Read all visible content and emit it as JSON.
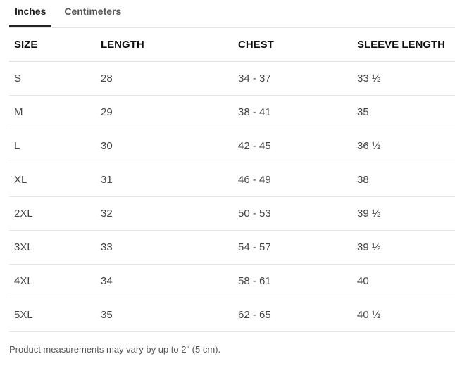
{
  "tabs": [
    {
      "label": "Inches",
      "active": true
    },
    {
      "label": "Centimeters",
      "active": false
    }
  ],
  "table": {
    "headers": [
      "SIZE",
      "LENGTH",
      "CHEST",
      "SLEEVE LENGTH"
    ],
    "rows": [
      [
        "S",
        "28",
        "34 - 37",
        "33 ½"
      ],
      [
        "M",
        "29",
        "38 - 41",
        "35"
      ],
      [
        "L",
        "30",
        "42 - 45",
        "36 ½"
      ],
      [
        "XL",
        "31",
        "46 - 49",
        "38"
      ],
      [
        "2XL",
        "32",
        "50 - 53",
        "39 ½"
      ],
      [
        "3XL",
        "33",
        "54 - 57",
        "39 ½"
      ],
      [
        "4XL",
        "34",
        "58 - 61",
        "40"
      ],
      [
        "5XL",
        "35",
        "62 - 65",
        "40 ½"
      ]
    ]
  },
  "footnote": "Product measurements may vary by up to 2\" (5 cm)."
}
